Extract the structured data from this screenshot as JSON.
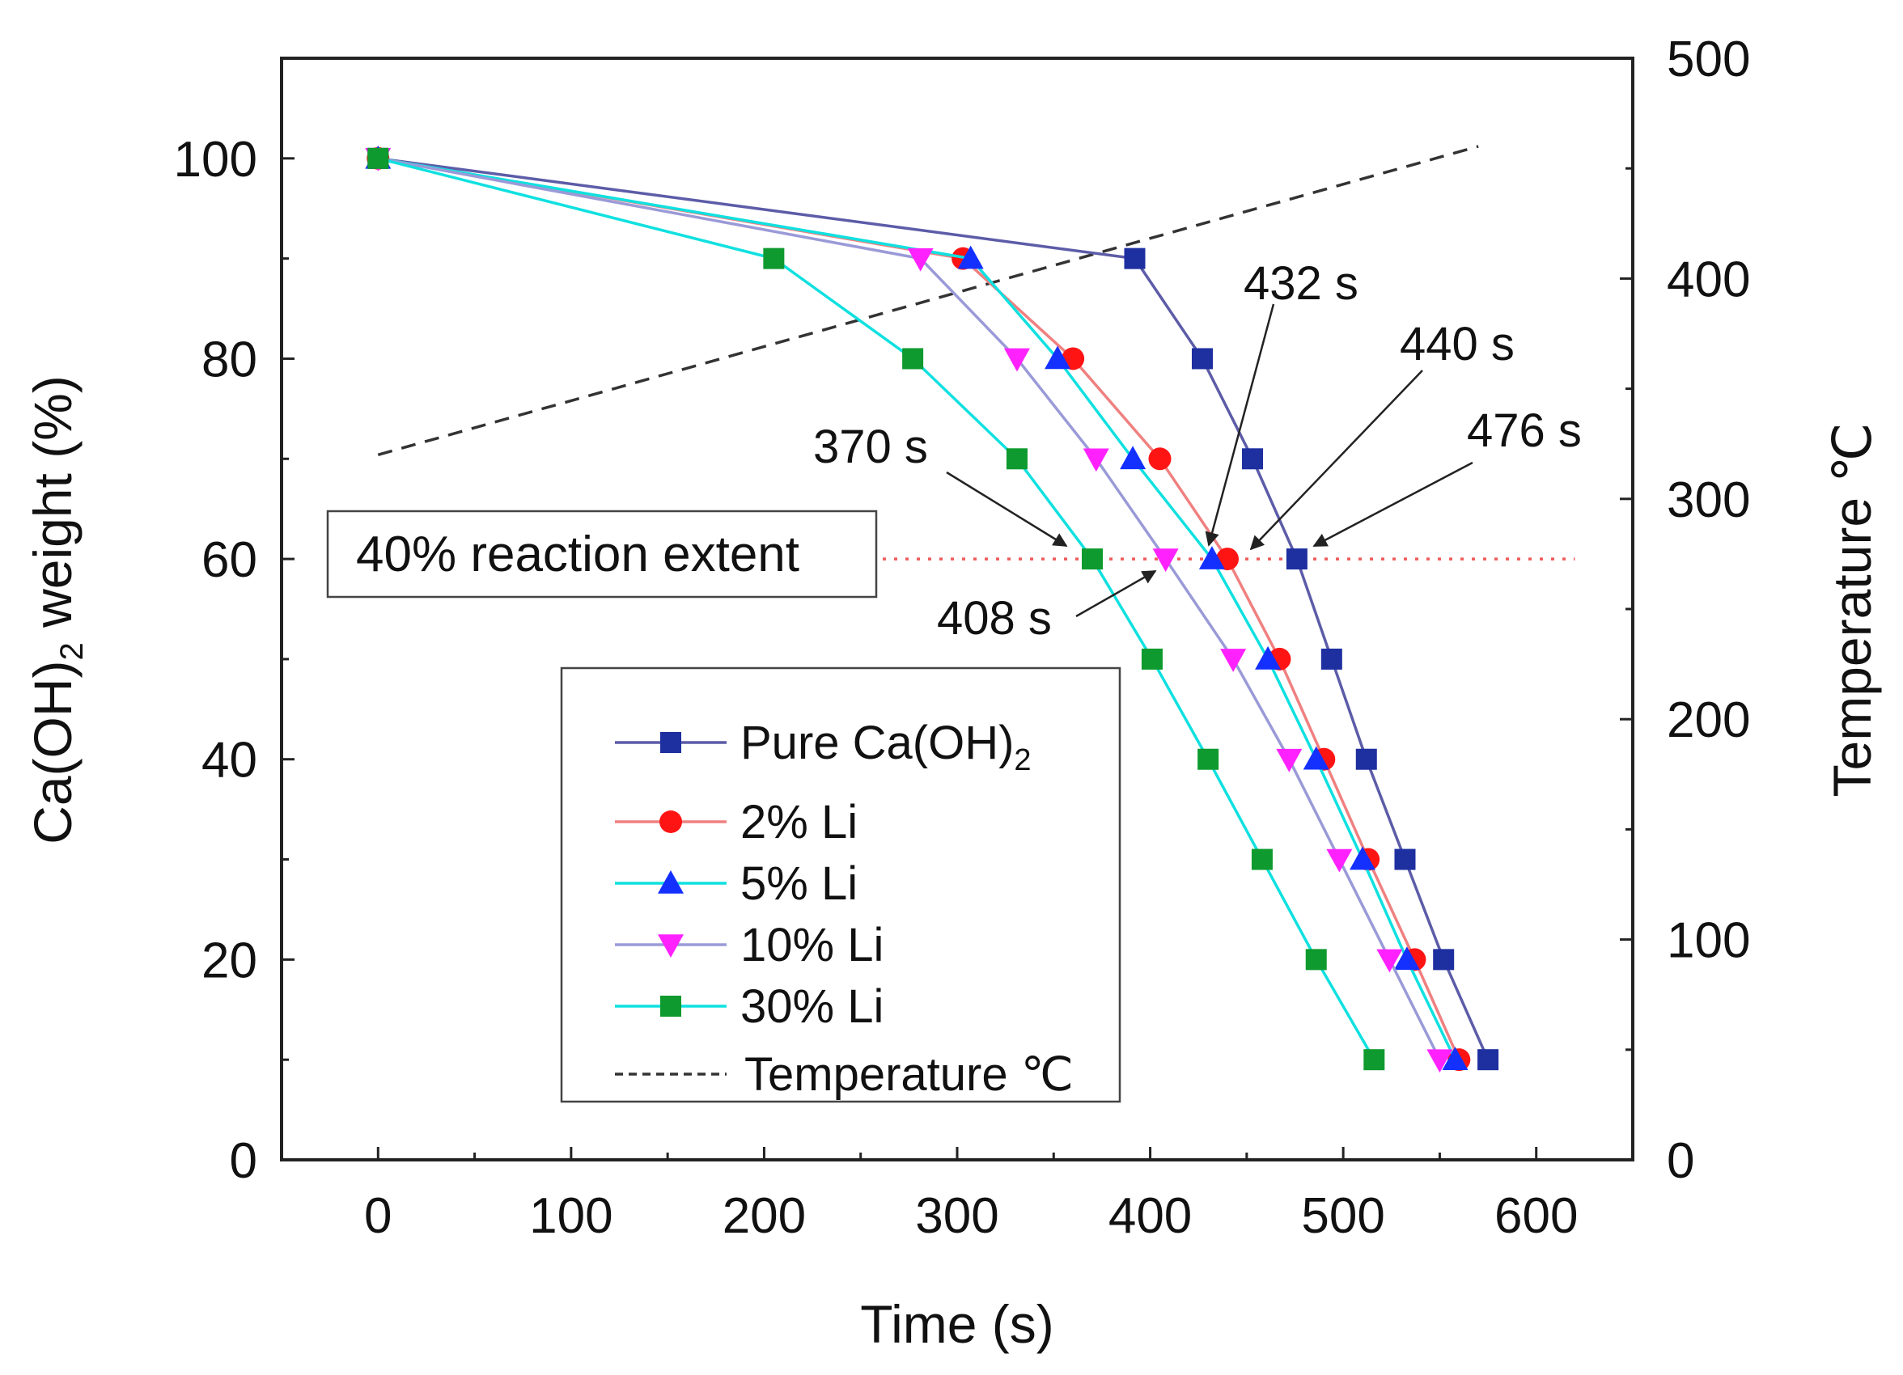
{
  "chart_data": {
    "type": "line",
    "xlabel": "Time (s)",
    "ylabel": "Ca(OH)",
    "ylabel_sub": "2",
    "ylabel_tail": " weight (%)",
    "y2label": "Temperature ℃",
    "xlim": [
      -50,
      650
    ],
    "ylim": [
      0,
      110
    ],
    "y2lim": [
      0,
      500
    ],
    "xticks": [
      0,
      100,
      200,
      300,
      400,
      500,
      600
    ],
    "yticks": [
      0,
      20,
      40,
      60,
      80,
      100
    ],
    "y2ticks": [
      0,
      100,
      200,
      300,
      400,
      500
    ],
    "series": [
      {
        "name": "Pure Ca(OH)",
        "name_sub": "2",
        "color": "#5c5ca8",
        "marker": "square",
        "marker_color": "#1e2fa0",
        "x": [
          0,
          392,
          427,
          453,
          476,
          494,
          512,
          532,
          552,
          575
        ],
        "y": [
          100,
          90,
          80,
          70,
          60,
          50,
          40,
          30,
          20,
          10
        ]
      },
      {
        "name": "2% Li",
        "color": "#f08080",
        "marker": "circle",
        "marker_color": "#ff1414",
        "x": [
          0,
          303,
          360,
          405,
          440,
          467,
          490,
          513,
          537,
          560
        ],
        "y": [
          100,
          90,
          80,
          70,
          60,
          50,
          40,
          30,
          20,
          10
        ]
      },
      {
        "name": "5% Li",
        "color": "#10e0e0",
        "marker": "triangle-up",
        "marker_color": "#1430ff",
        "x": [
          0,
          307,
          352,
          391,
          432,
          461,
          486,
          510,
          533,
          558
        ],
        "y": [
          100,
          90,
          80,
          70,
          60,
          50,
          40,
          30,
          20,
          10
        ]
      },
      {
        "name": "10% Li",
        "color": "#9a9ad8",
        "marker": "triangle-down",
        "marker_color": "#ff22ff",
        "x": [
          0,
          281,
          331,
          372,
          408,
          443,
          472,
          498,
          524,
          550
        ],
        "y": [
          100,
          90,
          80,
          70,
          60,
          50,
          40,
          30,
          20,
          10
        ]
      },
      {
        "name": "30% Li",
        "color": "#10e0e0",
        "marker": "square",
        "marker_color": "#0e9a2e",
        "x": [
          0,
          205,
          277,
          331,
          370,
          401,
          430,
          458,
          486,
          516
        ],
        "y": [
          100,
          90,
          80,
          70,
          60,
          50,
          40,
          30,
          20,
          10
        ]
      }
    ],
    "temperature": {
      "name": "Temperature ℃",
      "axis": "y2",
      "color": "#333333",
      "x": [
        0,
        570
      ],
      "y": [
        320,
        460
      ]
    },
    "reference_line": {
      "y": 60,
      "color": "#f05a5a"
    },
    "box_label": "40% reaction extent",
    "annotations": [
      {
        "text": "370 s",
        "x": 370,
        "y": 60
      },
      {
        "text": "408 s",
        "x": 408,
        "y": 60
      },
      {
        "text": "432 s",
        "x": 432,
        "y": 60
      },
      {
        "text": "440 s",
        "x": 440,
        "y": 60
      },
      {
        "text": "476 s",
        "x": 476,
        "y": 60
      }
    ]
  }
}
